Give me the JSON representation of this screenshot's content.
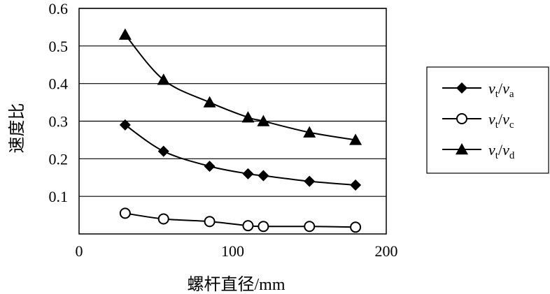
{
  "chart_data": {
    "type": "line",
    "xlabel": "螺杆直径/mm",
    "ylabel": "速度比",
    "xlim": [
      0,
      200
    ],
    "ylim": [
      0,
      0.6
    ],
    "x_ticks": [
      "0",
      "100",
      "200"
    ],
    "y_ticks": [
      "0.1",
      "0.2",
      "0.3",
      "0.4",
      "0.5",
      "0.6"
    ],
    "grid": "horizontal",
    "legend_position": "right",
    "x": [
      30,
      55,
      85,
      110,
      120,
      150,
      180
    ],
    "series": [
      {
        "name": "vt/va",
        "name_parts": {
          "v1": "v",
          "s1": "t",
          "slash": "/",
          "v2": "v",
          "s2": "a"
        },
        "marker": "diamond",
        "values": [
          0.29,
          0.22,
          0.18,
          0.16,
          0.155,
          0.14,
          0.13
        ]
      },
      {
        "name": "vt/vc",
        "name_parts": {
          "v1": "v",
          "s1": "t",
          "slash": "/",
          "v2": "v",
          "s2": "c"
        },
        "marker": "circle",
        "values": [
          0.055,
          0.04,
          0.033,
          0.022,
          0.02,
          0.02,
          0.018
        ]
      },
      {
        "name": "vt/vd",
        "name_parts": {
          "v1": "v",
          "s1": "t",
          "slash": "/",
          "v2": "v",
          "s2": "d"
        },
        "marker": "triangle",
        "values": [
          0.53,
          0.41,
          0.35,
          0.31,
          0.3,
          0.27,
          0.25
        ]
      }
    ]
  }
}
